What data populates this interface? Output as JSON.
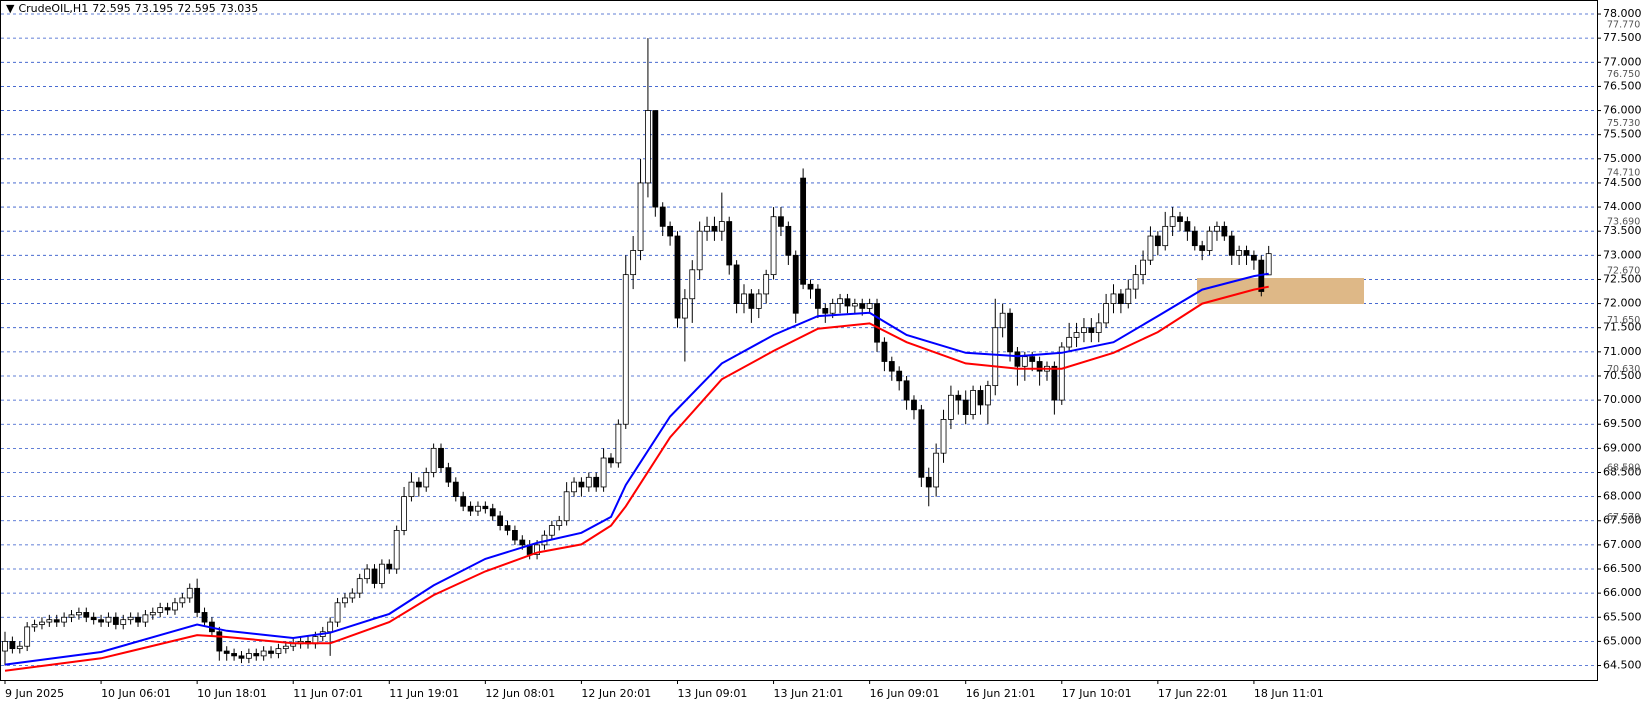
{
  "chart_data": {
    "type": "candlestick",
    "title": "CrudeOIL,H1",
    "categories": [
      "9 Jun 2025",
      null,
      null,
      null,
      null,
      null,
      null,
      null,
      null,
      null,
      null,
      null,
      null,
      "10 Jun 06:01",
      null,
      null,
      null,
      null,
      null,
      null,
      null,
      null,
      null,
      null,
      null,
      null,
      "10 Jun 18:01",
      null,
      null,
      null,
      null,
      null,
      null,
      null,
      null,
      null,
      null,
      null,
      null,
      "11 Jun 07:01",
      null,
      null,
      null,
      null,
      null,
      null,
      null,
      null,
      null,
      null,
      null,
      null,
      "11 Jun 19:01",
      null,
      null,
      null,
      null,
      null,
      null,
      null,
      null,
      null,
      null,
      null,
      null,
      "12 Jun 08:01",
      null,
      null,
      null,
      null,
      null,
      null,
      null,
      null,
      null,
      null,
      null,
      null,
      "12 Jun 20:01",
      null,
      null,
      null,
      null,
      null,
      null,
      null,
      null,
      null,
      null,
      null,
      null,
      "13 Jun 09:01",
      null,
      null,
      null,
      null,
      null,
      null,
      null,
      null,
      null,
      null,
      null,
      null,
      "13 Jun 21:01",
      null,
      null,
      null,
      null,
      null,
      null,
      null,
      null,
      null,
      null,
      null,
      null,
      "16 Jun 09:01",
      null,
      null,
      null,
      null,
      null,
      null,
      null,
      null,
      null,
      null,
      null,
      null,
      "16 Jun 21:01",
      null,
      null,
      null,
      null,
      null,
      null,
      null,
      null,
      null,
      null,
      null,
      null,
      "17 Jun 10:01",
      null,
      null,
      null,
      null,
      null,
      null,
      null,
      null,
      null,
      null,
      null,
      null,
      "17 Jun 22:01",
      null,
      null,
      null,
      null,
      null,
      null,
      null,
      null,
      null,
      null,
      null,
      null,
      "18 Jun 11:01",
      null,
      null
    ],
    "open": [
      64.8,
      65.0,
      64.85,
      64.9,
      65.3,
      65.35,
      65.4,
      65.45,
      65.4,
      65.5,
      65.55,
      65.6,
      65.5,
      65.45,
      65.4,
      65.5,
      65.35,
      65.45,
      65.5,
      65.4,
      65.55,
      65.6,
      65.7,
      65.65,
      65.8,
      65.9,
      66.1,
      65.6,
      65.4,
      65.2,
      64.8,
      64.75,
      64.7,
      64.65,
      64.75,
      64.7,
      64.8,
      64.75,
      64.85,
      64.9,
      64.95,
      65.0,
      64.95,
      65.1,
      65.2,
      65.4,
      65.8,
      65.9,
      66.0,
      66.3,
      66.5,
      66.2,
      66.6,
      66.5,
      67.3,
      68.0,
      68.3,
      68.2,
      68.5,
      69.0,
      68.6,
      68.3,
      68.0,
      67.8,
      67.7,
      67.8,
      67.75,
      67.6,
      67.4,
      67.3,
      67.1,
      67.0,
      66.8,
      67.0,
      67.2,
      67.4,
      67.5,
      68.1,
      68.3,
      68.2,
      68.4,
      68.2,
      68.8,
      68.7,
      69.5,
      72.6,
      73.1,
      74.5,
      76.0,
      74.0,
      73.6,
      73.4,
      71.7,
      72.1,
      72.7,
      73.5,
      73.6,
      73.5,
      73.7,
      72.8,
      72.0,
      72.2,
      71.9,
      72.2,
      72.6,
      73.8,
      73.6,
      73.0,
      74.6,
      72.4,
      72.3,
      71.9,
      71.8,
      72.0,
      72.1,
      71.95,
      72.0,
      71.9,
      72.0,
      71.2,
      70.8,
      70.6,
      70.4,
      70.0,
      69.8,
      68.4,
      68.2,
      68.9,
      69.6,
      70.1,
      70.0,
      69.7,
      70.2,
      69.9,
      70.3,
      71.5,
      71.8,
      71.0,
      70.7,
      70.9,
      70.8,
      70.6,
      70.7,
      70.0,
      71.1,
      71.3,
      71.4,
      71.5,
      71.4,
      71.6,
      72.0,
      72.2,
      72.0,
      72.3,
      72.6,
      72.9,
      73.4,
      73.2,
      73.6,
      73.8,
      73.7,
      73.5,
      73.2,
      73.1,
      73.5,
      73.6,
      73.4,
      73.0,
      73.1,
      73.0,
      72.9,
      72.595
    ],
    "high": [
      65.2,
      65.1,
      65.0,
      65.4,
      65.45,
      65.5,
      65.55,
      65.55,
      65.6,
      65.65,
      65.7,
      65.7,
      65.6,
      65.55,
      65.6,
      65.6,
      65.55,
      65.6,
      65.6,
      65.65,
      65.7,
      65.8,
      65.8,
      65.9,
      66.0,
      66.2,
      66.3,
      65.7,
      65.5,
      65.3,
      64.9,
      64.85,
      64.8,
      64.85,
      64.85,
      64.9,
      64.9,
      64.95,
      65.0,
      65.05,
      65.1,
      65.1,
      65.2,
      65.3,
      65.5,
      65.9,
      66.0,
      66.1,
      66.4,
      66.6,
      66.6,
      66.7,
      66.7,
      67.4,
      68.2,
      68.5,
      68.4,
      68.6,
      69.1,
      69.1,
      68.7,
      68.4,
      68.1,
      67.9,
      67.9,
      67.9,
      67.85,
      67.7,
      67.5,
      67.4,
      67.2,
      67.1,
      67.1,
      67.3,
      67.5,
      67.6,
      68.3,
      68.4,
      68.4,
      68.5,
      68.5,
      69.0,
      68.9,
      69.6,
      73.0,
      73.4,
      75.0,
      77.5,
      76.0,
      74.1,
      73.7,
      73.5,
      72.3,
      72.9,
      73.7,
      73.8,
      73.8,
      74.3,
      73.8,
      72.9,
      72.4,
      72.3,
      72.3,
      72.7,
      74.0,
      74.0,
      73.7,
      73.1,
      74.8,
      72.5,
      72.4,
      72.0,
      72.1,
      72.2,
      72.2,
      72.1,
      72.1,
      72.1,
      72.1,
      71.3,
      70.9,
      70.7,
      70.5,
      70.1,
      69.9,
      68.6,
      69.1,
      69.8,
      70.3,
      70.2,
      70.2,
      70.3,
      70.3,
      70.4,
      72.1,
      72.0,
      71.9,
      71.1,
      71.0,
      71.0,
      70.9,
      70.8,
      70.8,
      71.2,
      71.6,
      71.6,
      71.7,
      71.7,
      71.8,
      72.2,
      72.4,
      72.3,
      72.5,
      72.8,
      73.1,
      73.6,
      73.5,
      73.9,
      74.0,
      73.9,
      73.8,
      73.6,
      73.3,
      73.6,
      73.7,
      73.7,
      73.5,
      73.2,
      73.2,
      73.1,
      73.0,
      73.195
    ],
    "low": [
      64.5,
      64.75,
      64.75,
      64.8,
      65.2,
      65.25,
      65.3,
      65.3,
      65.3,
      65.4,
      65.45,
      65.4,
      65.35,
      65.3,
      65.3,
      65.25,
      65.25,
      65.35,
      65.3,
      65.3,
      65.45,
      65.5,
      65.55,
      65.55,
      65.7,
      65.8,
      65.5,
      65.3,
      65.1,
      64.6,
      64.6,
      64.6,
      64.55,
      64.55,
      64.6,
      64.6,
      64.65,
      64.65,
      64.75,
      64.8,
      64.85,
      64.85,
      64.85,
      65.0,
      64.7,
      65.3,
      65.7,
      65.8,
      65.9,
      66.2,
      66.1,
      66.1,
      66.4,
      66.4,
      67.2,
      67.9,
      68.0,
      68.1,
      68.4,
      68.5,
      68.2,
      67.9,
      67.7,
      67.6,
      67.6,
      67.65,
      67.5,
      67.3,
      67.2,
      67.0,
      66.9,
      66.7,
      66.7,
      66.9,
      67.1,
      67.3,
      67.4,
      68.0,
      68.0,
      68.1,
      68.1,
      68.1,
      68.6,
      68.6,
      69.4,
      72.3,
      72.9,
      74.2,
      73.8,
      73.4,
      73.2,
      71.5,
      70.8,
      71.6,
      72.5,
      73.3,
      73.3,
      73.3,
      72.6,
      71.8,
      71.8,
      71.6,
      71.7,
      72.0,
      72.5,
      73.4,
      72.8,
      71.6,
      72.3,
      72.1,
      71.7,
      71.6,
      71.7,
      71.8,
      71.8,
      71.8,
      71.75,
      71.8,
      71.0,
      70.6,
      70.4,
      70.2,
      69.8,
      69.6,
      68.2,
      67.8,
      68.0,
      68.7,
      69.4,
      69.7,
      69.5,
      69.6,
      69.7,
      69.5,
      70.1,
      71.3,
      70.8,
      70.3,
      70.4,
      70.6,
      70.3,
      70.4,
      69.7,
      69.9,
      71.0,
      71.1,
      71.2,
      71.2,
      71.2,
      71.5,
      71.8,
      71.8,
      71.9,
      72.1,
      72.4,
      72.8,
      73.0,
      73.1,
      73.4,
      73.5,
      73.3,
      73.1,
      72.9,
      73.0,
      73.3,
      73.3,
      72.8,
      72.8,
      72.8,
      72.7,
      72.15,
      72.595
    ],
    "close": [
      65.0,
      64.85,
      64.9,
      65.3,
      65.35,
      65.4,
      65.45,
      65.4,
      65.5,
      65.55,
      65.6,
      65.5,
      65.45,
      65.4,
      65.5,
      65.35,
      65.45,
      65.5,
      65.4,
      65.55,
      65.6,
      65.7,
      65.65,
      65.8,
      65.9,
      66.1,
      65.6,
      65.4,
      65.2,
      64.8,
      64.75,
      64.7,
      64.65,
      64.75,
      64.7,
      64.8,
      64.75,
      64.85,
      64.9,
      64.95,
      65.0,
      64.95,
      65.1,
      65.2,
      65.4,
      65.8,
      65.9,
      66.0,
      66.3,
      66.5,
      66.2,
      66.6,
      66.5,
      67.3,
      68.0,
      68.3,
      68.2,
      68.5,
      69.0,
      68.6,
      68.3,
      68.0,
      67.8,
      67.7,
      67.8,
      67.75,
      67.6,
      67.4,
      67.3,
      67.1,
      67.0,
      66.8,
      67.0,
      67.2,
      67.4,
      67.5,
      68.1,
      68.3,
      68.2,
      68.4,
      68.2,
      68.8,
      68.7,
      69.5,
      72.6,
      73.1,
      74.5,
      76.0,
      74.0,
      73.6,
      73.4,
      71.7,
      72.1,
      72.7,
      73.5,
      73.6,
      73.5,
      73.7,
      72.8,
      72.0,
      72.2,
      71.9,
      72.2,
      72.6,
      73.8,
      73.6,
      73.0,
      71.8,
      72.4,
      72.3,
      71.9,
      71.8,
      72.0,
      72.1,
      71.95,
      72.0,
      71.9,
      72.0,
      71.2,
      70.8,
      70.6,
      70.4,
      70.0,
      69.8,
      68.4,
      68.2,
      68.9,
      69.6,
      70.1,
      70.0,
      69.7,
      70.2,
      69.9,
      70.3,
      71.5,
      71.8,
      71.0,
      70.7,
      70.9,
      70.8,
      70.6,
      70.7,
      70.0,
      71.1,
      71.3,
      71.4,
      71.5,
      71.4,
      71.6,
      72.0,
      72.2,
      72.0,
      72.3,
      72.6,
      72.9,
      73.4,
      73.2,
      73.6,
      73.8,
      73.7,
      73.5,
      73.2,
      73.1,
      73.5,
      73.6,
      73.4,
      73.0,
      73.1,
      73.0,
      72.9,
      72.25,
      73.035
    ],
    "ma_lines": [
      {
        "color": "#0000ff",
        "x": [
          0,
          13,
          26,
          30,
          39,
          44,
          52,
          58,
          65,
          72,
          78,
          82,
          84,
          90,
          97,
          104,
          110,
          117,
          122,
          130,
          137,
          143,
          150,
          156,
          162,
          169,
          171
        ],
        "values": [
          64.52,
          64.78,
          65.35,
          65.22,
          65.07,
          65.18,
          65.57,
          66.16,
          66.71,
          67.04,
          67.25,
          67.58,
          68.24,
          69.66,
          70.76,
          71.35,
          71.74,
          71.81,
          71.35,
          70.98,
          70.91,
          70.98,
          71.2,
          71.74,
          72.29,
          72.57,
          72.62
        ]
      },
      {
        "color": "#ff0000",
        "x": [
          0,
          13,
          26,
          30,
          39,
          44,
          52,
          58,
          65,
          72,
          78,
          82,
          84,
          90,
          97,
          104,
          110,
          117,
          122,
          130,
          137,
          143,
          150,
          156,
          162,
          169,
          171
        ],
        "values": [
          64.39,
          64.65,
          65.13,
          65.09,
          64.96,
          64.96,
          65.4,
          65.96,
          66.45,
          66.84,
          67.01,
          67.4,
          67.8,
          69.23,
          70.43,
          71.02,
          71.48,
          71.59,
          71.2,
          70.76,
          70.65,
          70.65,
          70.98,
          71.41,
          72.0,
          72.29,
          72.35
        ]
      }
    ],
    "ylim": [
      64.2,
      78.27
    ],
    "yticks": [
      {
        "value": 64.5,
        "label": "64.500"
      },
      {
        "value": 65,
        "label": "65.000"
      },
      {
        "value": 65.5,
        "label": "65.500"
      },
      {
        "value": 66,
        "label": "66.000"
      },
      {
        "value": 66.5,
        "label": "66.500"
      },
      {
        "value": 67,
        "label": "67.000"
      },
      {
        "value": 67.5,
        "label": "67.500"
      },
      {
        "value": 68,
        "label": "68.000"
      },
      {
        "value": 68.5,
        "label": "68.500"
      },
      {
        "value": 69,
        "label": "69.000"
      },
      {
        "value": 69.5,
        "label": "69.500"
      },
      {
        "value": 70,
        "label": "70.000"
      },
      {
        "value": 70.5,
        "label": "70.500"
      },
      {
        "value": 71,
        "label": "71.000"
      },
      {
        "value": 71.5,
        "label": "71.500"
      },
      {
        "value": 72,
        "label": "72.000"
      },
      {
        "value": 72.5,
        "label": "72.500"
      },
      {
        "value": 73,
        "label": "73.000"
      },
      {
        "value": 73.5,
        "label": "73.500"
      },
      {
        "value": 74,
        "label": "74.000"
      },
      {
        "value": 74.5,
        "label": "74.500"
      },
      {
        "value": 75,
        "label": "75.000"
      },
      {
        "value": 75.5,
        "label": "75.500"
      },
      {
        "value": 76,
        "label": "76.000"
      },
      {
        "value": 76.5,
        "label": "76.500"
      },
      {
        "value": 77,
        "label": "77.000"
      },
      {
        "value": 77.5,
        "label": "77.500"
      },
      {
        "value": 78,
        "label": "78.000"
      }
    ],
    "price_levels": [
      {
        "value": 77.77,
        "label": "77.770"
      },
      {
        "value": 76.75,
        "label": "76.750"
      },
      {
        "value": 75.73,
        "label": "75.730"
      },
      {
        "value": 74.71,
        "label": "74.710"
      },
      {
        "value": 73.69,
        "label": "73.690"
      },
      {
        "value": 72.67,
        "label": "72.670"
      },
      {
        "value": 71.65,
        "label": "71.650"
      },
      {
        "value": 70.63,
        "label": "70.630"
      },
      {
        "value": 68.59,
        "label": "68.590"
      },
      {
        "value": 67.57,
        "label": "67.570"
      }
    ],
    "grid": true,
    "up_color": "#ffffff",
    "down_color": "#000000",
    "grid_color": "#2f55c9"
  }
}
